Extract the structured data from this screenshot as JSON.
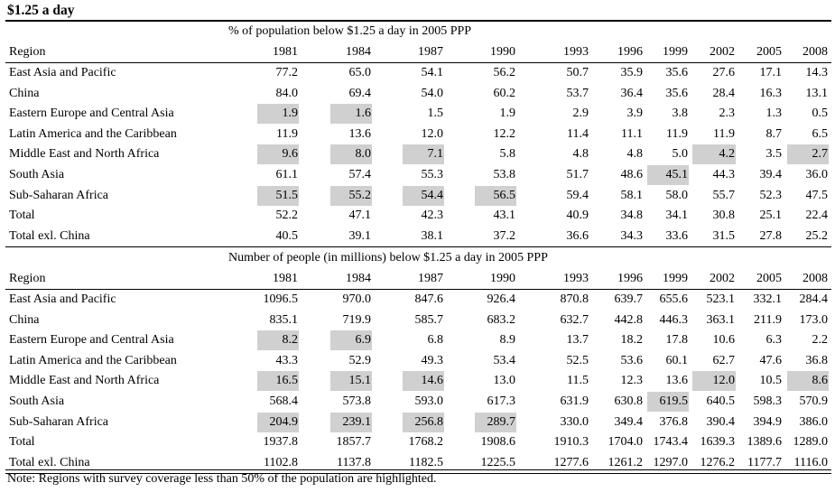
{
  "title": "$1.25 a day",
  "panels": [
    {
      "caption": "% of population below $1.25 a day in 2005 PPP",
      "header": [
        "Region",
        "1981",
        "1984",
        "1987",
        "1990",
        "1993",
        "1996",
        "1999",
        "2002",
        "2005",
        "2008"
      ],
      "rows": [
        {
          "region": "East Asia and Pacific",
          "values": [
            "77.2",
            "65.0",
            "54.1",
            "56.2",
            "50.7",
            "35.9",
            "35.6",
            "27.6",
            "17.1",
            "14.3"
          ],
          "highlight": []
        },
        {
          "region": "China",
          "values": [
            "84.0",
            "69.4",
            "54.0",
            "60.2",
            "53.7",
            "36.4",
            "35.6",
            "28.4",
            "16.3",
            "13.1"
          ],
          "highlight": []
        },
        {
          "region": "Eastern Europe and Central Asia",
          "values": [
            "1.9",
            "1.6",
            "1.5",
            "1.9",
            "2.9",
            "3.9",
            "3.8",
            "2.3",
            "1.3",
            "0.5"
          ],
          "highlight": [
            0,
            1
          ]
        },
        {
          "region": "Latin America and the Caribbean",
          "values": [
            "11.9",
            "13.6",
            "12.0",
            "12.2",
            "11.4",
            "11.1",
            "11.9",
            "11.9",
            "8.7",
            "6.5"
          ],
          "highlight": []
        },
        {
          "region": "Middle East and North Africa",
          "values": [
            "9.6",
            "8.0",
            "7.1",
            "5.8",
            "4.8",
            "4.8",
            "5.0",
            "4.2",
            "3.5",
            "2.7"
          ],
          "highlight": [
            0,
            1,
            2,
            7,
            9
          ]
        },
        {
          "region": "South Asia",
          "values": [
            "61.1",
            "57.4",
            "55.3",
            "53.8",
            "51.7",
            "48.6",
            "45.1",
            "44.3",
            "39.4",
            "36.0"
          ],
          "highlight": [
            6
          ]
        },
        {
          "region": "Sub-Saharan Africa",
          "values": [
            "51.5",
            "55.2",
            "54.4",
            "56.5",
            "59.4",
            "58.1",
            "58.0",
            "55.7",
            "52.3",
            "47.5"
          ],
          "highlight": [
            0,
            1,
            2,
            3
          ]
        },
        {
          "region": "Total",
          "values": [
            "52.2",
            "47.1",
            "42.3",
            "43.1",
            "40.9",
            "34.8",
            "34.1",
            "30.8",
            "25.1",
            "22.4"
          ],
          "highlight": []
        },
        {
          "region": "Total exl. China",
          "values": [
            "40.5",
            "39.1",
            "38.1",
            "37.2",
            "36.6",
            "34.3",
            "33.6",
            "31.5",
            "27.8",
            "25.2"
          ],
          "highlight": []
        }
      ]
    },
    {
      "caption": "Number of people (in millions) below $1.25 a day in 2005 PPP",
      "header": [
        "Region",
        "1981",
        "1984",
        "1987",
        "1990",
        "1993",
        "1996",
        "1999",
        "2002",
        "2005",
        "2008"
      ],
      "rows": [
        {
          "region": "East Asia and Pacific",
          "values": [
            "1096.5",
            "970.0",
            "847.6",
            "926.4",
            "870.8",
            "639.7",
            "655.6",
            "523.1",
            "332.1",
            "284.4"
          ],
          "highlight": []
        },
        {
          "region": "China",
          "values": [
            "835.1",
            "719.9",
            "585.7",
            "683.2",
            "632.7",
            "442.8",
            "446.3",
            "363.1",
            "211.9",
            "173.0"
          ],
          "highlight": []
        },
        {
          "region": "Eastern Europe and Central Asia",
          "values": [
            "8.2",
            "6.9",
            "6.8",
            "8.9",
            "13.7",
            "18.2",
            "17.8",
            "10.6",
            "6.3",
            "2.2"
          ],
          "highlight": [
            0,
            1
          ]
        },
        {
          "region": "Latin America and the Caribbean",
          "values": [
            "43.3",
            "52.9",
            "49.3",
            "53.4",
            "52.5",
            "53.6",
            "60.1",
            "62.7",
            "47.6",
            "36.8"
          ],
          "highlight": []
        },
        {
          "region": "Middle East and North Africa",
          "values": [
            "16.5",
            "15.1",
            "14.6",
            "13.0",
            "11.5",
            "12.3",
            "13.6",
            "12.0",
            "10.5",
            "8.6"
          ],
          "highlight": [
            0,
            1,
            2,
            7,
            9
          ]
        },
        {
          "region": "South Asia",
          "values": [
            "568.4",
            "573.8",
            "593.0",
            "617.3",
            "631.9",
            "630.8",
            "619.5",
            "640.5",
            "598.3",
            "570.9"
          ],
          "highlight": [
            6
          ]
        },
        {
          "region": "Sub-Saharan Africa",
          "values": [
            "204.9",
            "239.1",
            "256.8",
            "289.7",
            "330.0",
            "349.4",
            "376.8",
            "390.4",
            "394.9",
            "386.0"
          ],
          "highlight": [
            0,
            1,
            2,
            3
          ]
        },
        {
          "region": "Total",
          "values": [
            "1937.8",
            "1857.7",
            "1768.2",
            "1908.6",
            "1910.3",
            "1704.0",
            "1743.4",
            "1639.3",
            "1389.6",
            "1289.0"
          ],
          "highlight": []
        },
        {
          "region": "Total exl. China",
          "values": [
            "1102.8",
            "1137.8",
            "1182.5",
            "1225.5",
            "1277.6",
            "1261.2",
            "1297.0",
            "1276.2",
            "1177.7",
            "1116.0"
          ],
          "highlight": []
        }
      ]
    }
  ],
  "note": "Note: Regions with survey coverage less than 50% of the population are highlighted."
}
